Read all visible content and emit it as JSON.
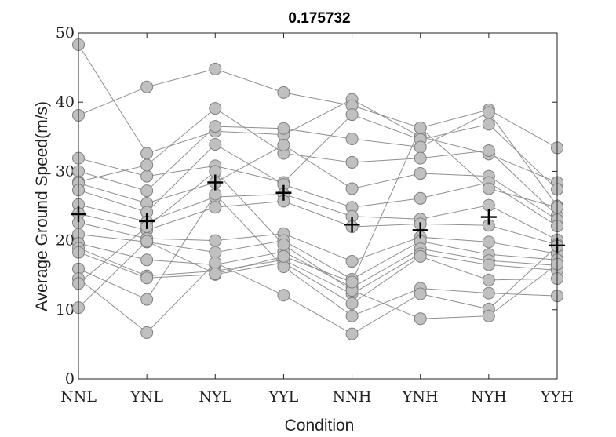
{
  "chart_data": {
    "type": "line",
    "title": "0.175732",
    "xlabel": "Condition",
    "ylabel": "Average Ground Speed(m/s)",
    "categories": [
      "NNL",
      "YNL",
      "NYL",
      "YYL",
      "NNH",
      "YNH",
      "NYH",
      "YYH"
    ],
    "ylim": [
      0,
      50
    ],
    "yticks": [
      0,
      10,
      20,
      30,
      40,
      50
    ],
    "grid": false,
    "colors": {
      "line": "#8f8f8f",
      "point_fill": "#c0c0c0",
      "point_edge": "#7f7f7f",
      "mean": "#000000"
    },
    "series": [
      {
        "values": [
          48.3,
          32.6,
          35.8,
          35.3,
          40.4,
          35.0,
          32.5,
          28.4
        ]
      },
      {
        "values": [
          38.1,
          42.2,
          44.8,
          41.4,
          39.5,
          36.3,
          38.9,
          33.4
        ]
      },
      {
        "values": [
          31.9,
          29.3,
          30.8,
          28.4,
          38.2,
          34.6,
          36.8,
          27.4
        ]
      },
      {
        "values": [
          30.0,
          27.2,
          36.5,
          36.2,
          34.7,
          33.5,
          38.5,
          25.0
        ]
      },
      {
        "values": [
          28.5,
          30.9,
          39.1,
          32.6,
          31.3,
          31.9,
          33.0,
          23.6
        ]
      },
      {
        "values": [
          28.3,
          25.4,
          28.4,
          33.8,
          27.5,
          29.7,
          29.3,
          23.0
        ]
      },
      {
        "values": [
          27.3,
          24.1,
          33.9,
          28.1,
          24.8,
          26.1,
          28.4,
          22.1
        ]
      },
      {
        "values": [
          25.2,
          22.7,
          26.3,
          26.7,
          23.5,
          23.1,
          25.1,
          20.1
        ]
      },
      {
        "values": [
          23.9,
          21.5,
          24.8,
          25.7,
          22.0,
          22.4,
          22.2,
          19.4
        ]
      },
      {
        "values": [
          22.6,
          20.3,
          20.0,
          21.0,
          17.0,
          20.5,
          19.8,
          18.1
        ]
      },
      {
        "values": [
          20.9,
          19.8,
          18.3,
          20.0,
          14.4,
          19.9,
          18.0,
          17.2
        ]
      },
      {
        "values": [
          19.6,
          17.2,
          16.5,
          18.4,
          13.2,
          18.8,
          17.1,
          16.4
        ]
      },
      {
        "values": [
          18.9,
          14.9,
          15.6,
          17.2,
          12.3,
          18.1,
          16.5,
          15.7
        ]
      },
      {
        "values": [
          18.3,
          14.6,
          15.1,
          16.8,
          10.9,
          17.7,
          14.3,
          14.5
        ]
      },
      {
        "values": [
          15.9,
          11.5,
          26.7,
          16.2,
          9.1,
          13.1,
          12.4,
          12.0
        ]
      },
      {
        "values": [
          14.5,
          6.7,
          16.8,
          12.1,
          6.5,
          12.3,
          10.1,
          19.2
        ]
      },
      {
        "values": [
          13.8,
          22.0,
          30.0,
          19.4,
          12.8,
          8.7,
          9.1,
          16.6
        ]
      },
      {
        "values": [
          10.3,
          19.9,
          15.2,
          17.7,
          14.0,
          36.3,
          27.5,
          24.8
        ]
      }
    ],
    "means": [
      23.8,
      22.8,
      28.4,
      26.9,
      22.3,
      21.5,
      23.4,
      19.3
    ]
  }
}
